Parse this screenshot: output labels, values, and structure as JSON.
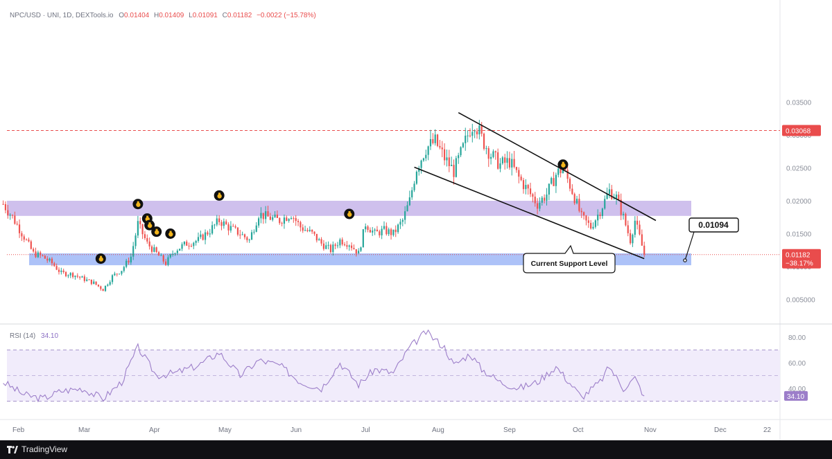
{
  "header": {
    "symbol": "NPC/USD · UNI, 1D, DEXTools.io",
    "o_label": "O",
    "o_value": "0.01404",
    "h_label": "H",
    "h_value": "0.01409",
    "l_label": "L",
    "l_value": "0.01091",
    "c_label": "C",
    "c_value": "0.01182",
    "change": "−0.0022 (−15.78%)"
  },
  "price_axis": {
    "ticks": [
      "0.03500",
      "0.03000",
      "0.02500",
      "0.02000",
      "0.01500",
      "0.01000",
      "0.005000"
    ],
    "resistance_tag": "0.03068",
    "current_price_tag": "0.01182",
    "current_change_tag": "−38.17%"
  },
  "time_axis": {
    "labels": [
      "Feb",
      "Mar",
      "Apr",
      "May",
      "Jun",
      "Jul",
      "Aug",
      "Sep",
      "Oct",
      "Nov",
      "Dec",
      "22"
    ]
  },
  "annotations": {
    "support_price_label": "0.01094",
    "support_caption": "Current Support Level"
  },
  "rsi": {
    "label": "RSI (14)",
    "value": "34.10",
    "ticks": [
      "80.00",
      "60.00",
      "40.00"
    ],
    "value_tag": "34.10"
  },
  "footer": {
    "brand": "TradingView"
  },
  "colors": {
    "bull": "#26a69a",
    "bear": "#ef5350",
    "purple_zone": "#c7b5ea",
    "blue_zone": "#9fb7f7",
    "rsi_line": "#9c7ec9",
    "rsi_band": "#f1ecfb",
    "resistance": "#e94c4c"
  },
  "chart_data": {
    "type": "candlestick",
    "title": "NPC/USD · UNI, 1D, DEXTools.io",
    "ylim": [
      0.002,
      0.038
    ],
    "x_months": [
      "Feb",
      "Mar",
      "Apr",
      "May",
      "Jun",
      "Jul",
      "Aug",
      "Sep",
      "Oct",
      "Nov",
      "Dec",
      "22"
    ],
    "close_path": [
      {
        "date": "Jan 28",
        "close": 0.0195
      },
      {
        "date": "Feb 1",
        "close": 0.0175
      },
      {
        "date": "Feb 6",
        "close": 0.0145
      },
      {
        "date": "Feb 10",
        "close": 0.012
      },
      {
        "date": "Feb 14",
        "close": 0.0115
      },
      {
        "date": "Feb 18",
        "close": 0.0105
      },
      {
        "date": "Feb 22",
        "close": 0.009
      },
      {
        "date": "Feb 27",
        "close": 0.0088
      },
      {
        "date": "Mar 3",
        "close": 0.0082
      },
      {
        "date": "Mar 8",
        "close": 0.0075
      },
      {
        "date": "Mar 12",
        "close": 0.0065
      },
      {
        "date": "Mar 16",
        "close": 0.0085
      },
      {
        "date": "Mar 20",
        "close": 0.0095
      },
      {
        "date": "Mar 24",
        "close": 0.0115
      },
      {
        "date": "Mar 27",
        "close": 0.0165
      },
      {
        "date": "Mar 31",
        "close": 0.0135
      },
      {
        "date": "Apr 4",
        "close": 0.012
      },
      {
        "date": "Apr 8",
        "close": 0.0105
      },
      {
        "date": "Apr 12",
        "close": 0.0125
      },
      {
        "date": "Apr 17",
        "close": 0.0135
      },
      {
        "date": "Apr 22",
        "close": 0.014
      },
      {
        "date": "Apr 27",
        "close": 0.0155
      },
      {
        "date": "May 1",
        "close": 0.017
      },
      {
        "date": "May 5",
        "close": 0.016
      },
      {
        "date": "May 10",
        "close": 0.015
      },
      {
        "date": "May 14",
        "close": 0.014
      },
      {
        "date": "May 18",
        "close": 0.018
      },
      {
        "date": "May 22",
        "close": 0.0175
      },
      {
        "date": "May 27",
        "close": 0.017
      },
      {
        "date": "Jun 1",
        "close": 0.018
      },
      {
        "date": "Jun 5",
        "close": 0.016
      },
      {
        "date": "Jun 10",
        "close": 0.015
      },
      {
        "date": "Jun 14",
        "close": 0.0135
      },
      {
        "date": "Jun 18",
        "close": 0.0125
      },
      {
        "date": "Jun 22",
        "close": 0.014
      },
      {
        "date": "Jun 26",
        "close": 0.0135
      },
      {
        "date": "Jun 30",
        "close": 0.012
      },
      {
        "date": "Jul 3",
        "close": 0.0165
      },
      {
        "date": "Jul 7",
        "close": 0.015
      },
      {
        "date": "Jul 11",
        "close": 0.0155
      },
      {
        "date": "Jul 15",
        "close": 0.015
      },
      {
        "date": "Jul 19",
        "close": 0.017
      },
      {
        "date": "Jul 22",
        "close": 0.02
      },
      {
        "date": "Jul 25",
        "close": 0.025
      },
      {
        "date": "Jul 29",
        "close": 0.028
      },
      {
        "date": "Aug 2",
        "close": 0.029
      },
      {
        "date": "Aug 6",
        "close": 0.0265
      },
      {
        "date": "Aug 10",
        "close": 0.0245
      },
      {
        "date": "Aug 14",
        "close": 0.028
      },
      {
        "date": "Aug 17",
        "close": 0.031
      },
      {
        "date": "Aug 19",
        "close": 0.032
      },
      {
        "date": "Aug 22",
        "close": 0.0295
      },
      {
        "date": "Aug 26",
        "close": 0.027
      },
      {
        "date": "Aug 30",
        "close": 0.0255
      },
      {
        "date": "Sep 3",
        "close": 0.026
      },
      {
        "date": "Sep 7",
        "close": 0.0235
      },
      {
        "date": "Sep 11",
        "close": 0.0215
      },
      {
        "date": "Sep 15",
        "close": 0.0195
      },
      {
        "date": "Sep 19",
        "close": 0.021
      },
      {
        "date": "Sep 23",
        "close": 0.024
      },
      {
        "date": "Sep 26",
        "close": 0.025
      },
      {
        "date": "Sep 30",
        "close": 0.0215
      },
      {
        "date": "Oct 4",
        "close": 0.0175
      },
      {
        "date": "Oct 8",
        "close": 0.016
      },
      {
        "date": "Oct 12",
        "close": 0.0185
      },
      {
        "date": "Oct 16",
        "close": 0.0215
      },
      {
        "date": "Oct 19",
        "close": 0.0205
      },
      {
        "date": "Oct 22",
        "close": 0.0175
      },
      {
        "date": "Oct 25",
        "close": 0.014
      },
      {
        "date": "Oct 27",
        "close": 0.017
      },
      {
        "date": "Oct 29",
        "close": 0.0145
      },
      {
        "date": "Oct 31",
        "close": 0.01182
      }
    ],
    "zones": [
      {
        "name": "resistance zone",
        "from": 0.0177,
        "to": 0.02
      },
      {
        "name": "support zone",
        "from": 0.0102,
        "to": 0.012
      }
    ],
    "lines": [
      {
        "name": "resistance level",
        "value": 0.03068
      },
      {
        "name": "current price",
        "value": 0.01182
      }
    ],
    "channel": {
      "upper": [
        {
          "date": "Aug 12",
          "price": 0.0334
        },
        {
          "date": "Nov 5",
          "price": 0.017
        }
      ],
      "lower": [
        {
          "date": "Jul 24",
          "price": 0.0251
        },
        {
          "date": "Oct 31",
          "price": 0.0112
        }
      ]
    },
    "support_level": 0.01094,
    "rsi": {
      "label": "RSI (14)",
      "ylim": [
        20,
        90
      ],
      "bands": [
        70,
        50,
        30
      ],
      "path": [
        {
          "date": "Jan 28",
          "value": 45
        },
        {
          "date": "Feb 6",
          "value": 35
        },
        {
          "date": "Feb 14",
          "value": 32
        },
        {
          "date": "Feb 22",
          "value": 38
        },
        {
          "date": "Mar 3",
          "value": 40
        },
        {
          "date": "Mar 12",
          "value": 32
        },
        {
          "date": "Mar 20",
          "value": 45
        },
        {
          "date": "Mar 27",
          "value": 72
        },
        {
          "date": "Apr 4",
          "value": 50
        },
        {
          "date": "Apr 12",
          "value": 52
        },
        {
          "date": "Apr 22",
          "value": 58
        },
        {
          "date": "May 1",
          "value": 68
        },
        {
          "date": "May 10",
          "value": 50
        },
        {
          "date": "May 18",
          "value": 62
        },
        {
          "date": "May 27",
          "value": 58
        },
        {
          "date": "Jun 5",
          "value": 45
        },
        {
          "date": "Jun 14",
          "value": 40
        },
        {
          "date": "Jun 22",
          "value": 60
        },
        {
          "date": "Jun 30",
          "value": 43
        },
        {
          "date": "Jul 7",
          "value": 55
        },
        {
          "date": "Jul 15",
          "value": 52
        },
        {
          "date": "Jul 22",
          "value": 72
        },
        {
          "date": "Jul 29",
          "value": 84
        },
        {
          "date": "Aug 6",
          "value": 72
        },
        {
          "date": "Aug 10",
          "value": 58
        },
        {
          "date": "Aug 17",
          "value": 67
        },
        {
          "date": "Aug 22",
          "value": 55
        },
        {
          "date": "Aug 30",
          "value": 45
        },
        {
          "date": "Sep 7",
          "value": 40
        },
        {
          "date": "Sep 15",
          "value": 45
        },
        {
          "date": "Sep 23",
          "value": 57
        },
        {
          "date": "Sep 30",
          "value": 42
        },
        {
          "date": "Oct 4",
          "value": 33
        },
        {
          "date": "Oct 12",
          "value": 45
        },
        {
          "date": "Oct 16",
          "value": 57
        },
        {
          "date": "Oct 22",
          "value": 40
        },
        {
          "date": "Oct 27",
          "value": 48
        },
        {
          "date": "Oct 31",
          "value": 34.1
        }
      ]
    },
    "markers": [
      {
        "date": "Mar 11",
        "price": 0.0112
      },
      {
        "date": "Mar 27",
        "price": 0.0195
      },
      {
        "date": "Mar 31",
        "price": 0.0173
      },
      {
        "date": "Apr 1",
        "price": 0.0163
      },
      {
        "date": "Apr 4",
        "price": 0.0153
      },
      {
        "date": "Apr 10",
        "price": 0.015
      },
      {
        "date": "May 1",
        "price": 0.0208
      },
      {
        "date": "Jun 26",
        "price": 0.018
      },
      {
        "date": "Sep 26",
        "price": 0.0255
      }
    ]
  }
}
